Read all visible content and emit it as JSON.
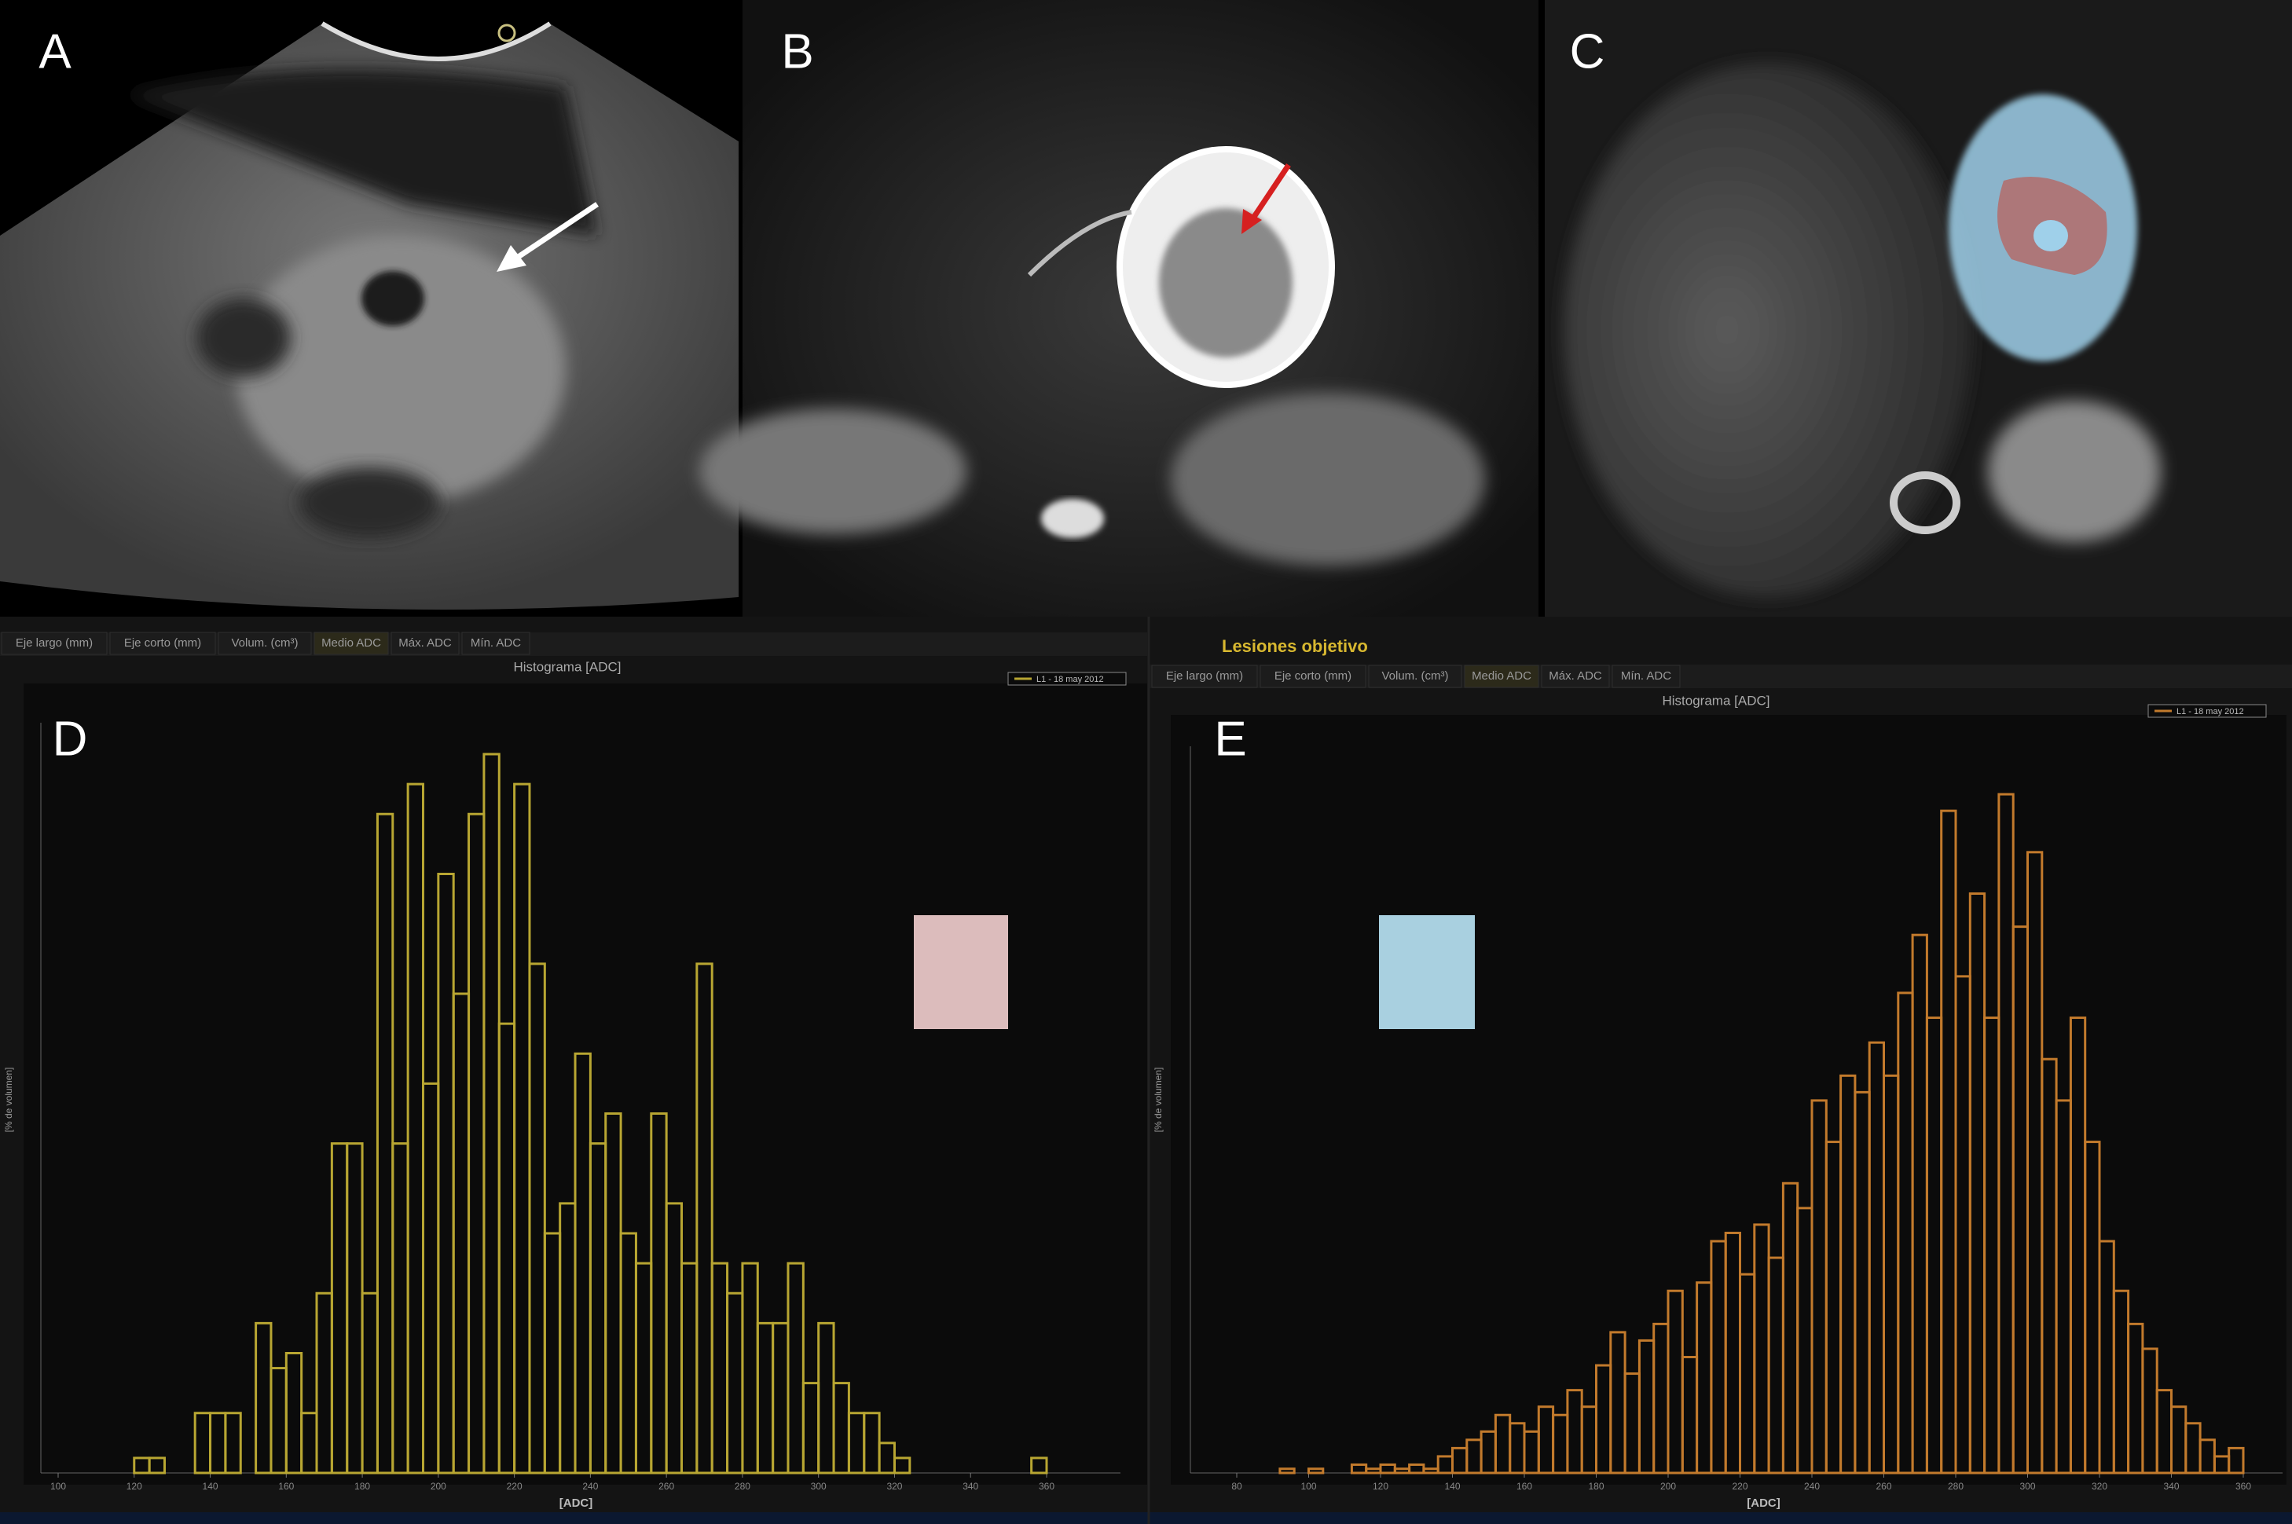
{
  "panels": [
    {
      "label": "A"
    },
    {
      "label": "B"
    },
    {
      "label": "C"
    }
  ],
  "ui": {
    "title": "Lesiones objetivo",
    "tabs_left": [
      "Eje largo (mm)",
      "Eje corto (mm)",
      "Volum. (cm³)",
      "Medio ADC",
      "Máx. ADC",
      "Mín. ADC"
    ],
    "tabs_right": [
      "Eje largo (mm)",
      "Eje corto (mm)",
      "Volum. (cm³)",
      "Medio ADC",
      "Máx. ADC",
      "Mín. ADC"
    ]
  },
  "chart_data": [
    {
      "type": "histogram",
      "panel_label": "D",
      "title": "Histograma [ADC]",
      "x_label": "[ADC]",
      "y_label": "[% de volumen]",
      "series": [
        {
          "name": "L1 - 18 may 2012",
          "color": "#b8a632"
        }
      ],
      "bins": [
        116,
        120,
        124,
        128,
        132,
        136,
        140,
        144,
        148,
        152,
        156,
        160,
        164,
        168,
        172,
        176,
        180,
        184,
        188,
        192,
        196,
        200,
        204,
        208,
        212,
        216,
        220,
        224,
        228,
        232,
        236,
        240,
        244,
        248,
        252,
        256,
        260,
        264,
        268,
        272,
        276,
        280,
        284,
        288,
        292,
        296,
        300,
        304,
        308,
        312,
        316,
        320,
        324,
        328,
        332,
        336,
        340,
        344,
        348,
        352,
        356,
        360,
        364
      ],
      "values": [
        0,
        0.5,
        0.5,
        0,
        0,
        2,
        2,
        2,
        0,
        5,
        3.5,
        4,
        2,
        6,
        11,
        11,
        6,
        22,
        11,
        23,
        13,
        20,
        16,
        22,
        24,
        15,
        23,
        17,
        8,
        9,
        14,
        11,
        12,
        8,
        7,
        12,
        9,
        7,
        17,
        7,
        6,
        7,
        5,
        5,
        7,
        3,
        5,
        3,
        2,
        2,
        1,
        0.5,
        0,
        0,
        0,
        0,
        0,
        0,
        0,
        0,
        0.5,
        0
      ],
      "xlim": [
        100,
        365
      ],
      "xticks": [
        100,
        120,
        140,
        160,
        180,
        200,
        220,
        240,
        260,
        280,
        300,
        320,
        340,
        360
      ],
      "ylim": [
        0,
        24
      ]
    },
    {
      "type": "histogram",
      "panel_label": "E",
      "title": "Histograma [ADC]",
      "x_label": "[ADC]",
      "y_label": "[% de volumen]",
      "series": [
        {
          "name": "L1 - 18 may 2012",
          "color": "#c27a2c"
        }
      ],
      "bins": [
        92,
        96,
        100,
        104,
        108,
        112,
        116,
        120,
        124,
        128,
        132,
        136,
        140,
        144,
        148,
        152,
        156,
        160,
        164,
        168,
        172,
        176,
        180,
        184,
        188,
        192,
        196,
        200,
        204,
        208,
        212,
        216,
        220,
        224,
        228,
        232,
        236,
        240,
        244,
        248,
        252,
        256,
        260,
        264,
        268,
        272,
        276,
        280,
        284,
        288,
        292,
        296,
        300,
        304,
        308,
        312,
        316,
        320,
        324,
        328,
        332,
        336,
        340,
        344,
        348,
        352,
        356,
        360,
        364
      ],
      "values": [
        0.5,
        0,
        0.5,
        0,
        0,
        1,
        0.5,
        1,
        0.5,
        1,
        0.5,
        2,
        3,
        4,
        5,
        7,
        6,
        5,
        8,
        7,
        10,
        8,
        13,
        17,
        12,
        16,
        18,
        22,
        14,
        23,
        28,
        29,
        24,
        30,
        26,
        35,
        32,
        45,
        40,
        48,
        46,
        52,
        48,
        58,
        65,
        55,
        80,
        60,
        70,
        55,
        82,
        66,
        75,
        50,
        45,
        55,
        40,
        28,
        22,
        18,
        15,
        10,
        8,
        6,
        4,
        2,
        3,
        0
      ],
      "xlim": [
        80,
        370
      ],
      "xticks": [
        80,
        100,
        120,
        140,
        160,
        180,
        200,
        220,
        240,
        260,
        280,
        300,
        320,
        340,
        360
      ],
      "ylim": [
        0,
        84
      ]
    }
  ]
}
